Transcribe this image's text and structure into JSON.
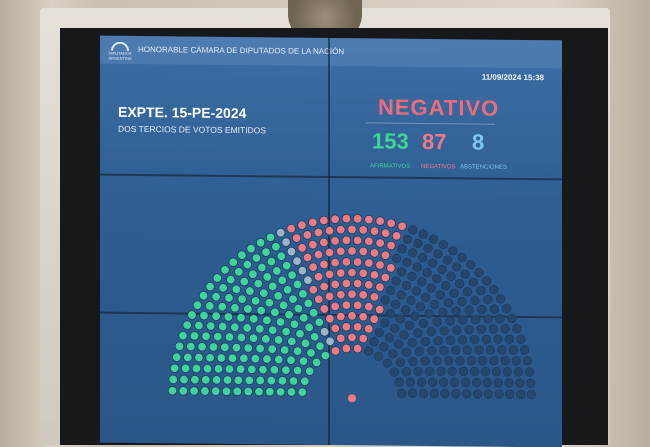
{
  "header": {
    "logo_text": "DIPUTADOS ARGENTINA",
    "chamber": "HONORABLE CÁMARA DE DIPUTADOS DE LA NACIÓN",
    "datetime": "11/09/2024 15:38"
  },
  "motion": {
    "expediente": "EXPTE. 15-PE-2024",
    "majority": "DOS TERCIOS DE VOTOS EMITIDOS"
  },
  "result": {
    "outcome": "NEGATIVO",
    "afirmativos": {
      "value": "153",
      "label": "AFIRMATIVOS"
    },
    "negativos": {
      "value": "87",
      "label": "NEGATIVOS"
    },
    "abstenciones": {
      "value": "8",
      "label": "ABSTENCIONES"
    }
  },
  "colors": {
    "afirmativo": "#3fd49a",
    "negativo": "#f07a82",
    "abstencion": "#9fb4c8",
    "ausente": "#25476e",
    "outcome": "#f06b7a"
  }
}
